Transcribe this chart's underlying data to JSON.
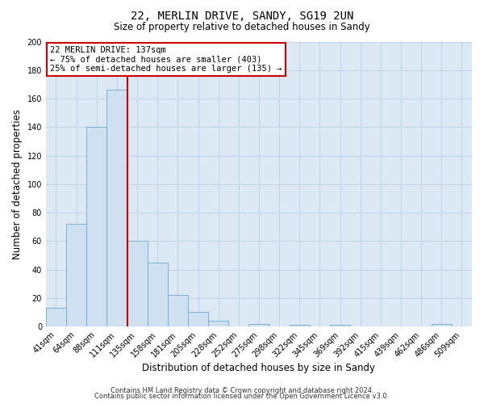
{
  "title": "22, MERLIN DRIVE, SANDY, SG19 2UN",
  "subtitle": "Size of property relative to detached houses in Sandy",
  "xlabel": "Distribution of detached houses by size in Sandy",
  "ylabel": "Number of detached properties",
  "bar_color": "#cfe0f0",
  "bar_edge_color": "#6aaad4",
  "bg_color": "#ffffff",
  "plot_bg_color": "#dce9f5",
  "grid_color": "#c0d4e8",
  "annotation_box_color": "#cc0000",
  "vline_color": "#cc0000",
  "categories": [
    "41sqm",
    "64sqm",
    "88sqm",
    "111sqm",
    "135sqm",
    "158sqm",
    "181sqm",
    "205sqm",
    "228sqm",
    "252sqm",
    "275sqm",
    "298sqm",
    "322sqm",
    "345sqm",
    "369sqm",
    "392sqm",
    "415sqm",
    "439sqm",
    "462sqm",
    "486sqm",
    "509sqm"
  ],
  "values": [
    13,
    72,
    140,
    166,
    60,
    45,
    22,
    10,
    4,
    0,
    2,
    0,
    1,
    0,
    1,
    0,
    0,
    0,
    0,
    2,
    0
  ],
  "vline_pos": 3.5,
  "annotation_text": "22 MERLIN DRIVE: 137sqm\n← 75% of detached houses are smaller (403)\n25% of semi-detached houses are larger (135) →",
  "ylim": [
    0,
    200
  ],
  "yticks": [
    0,
    20,
    40,
    60,
    80,
    100,
    120,
    140,
    160,
    180,
    200
  ],
  "footer_line1": "Contains HM Land Registry data © Crown copyright and database right 2024.",
  "footer_line2": "Contains public sector information licensed under the Open Government Licence v3.0.",
  "title_fontsize": 10,
  "subtitle_fontsize": 8.5,
  "xlabel_fontsize": 8.5,
  "ylabel_fontsize": 8.5,
  "tick_fontsize": 7,
  "annotation_fontsize": 7.5,
  "footer_fontsize": 6
}
